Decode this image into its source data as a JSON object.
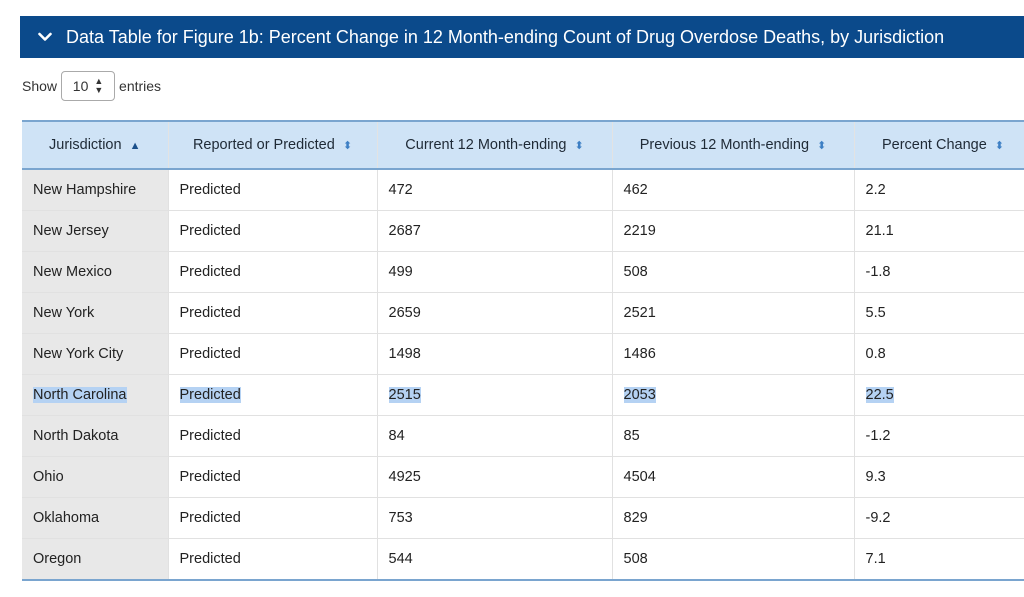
{
  "accordion": {
    "title": "Data Table for Figure 1b: Percent Change in 12 Month-ending Count of Drug Overdose Deaths, by Jurisdiction"
  },
  "length_control": {
    "show_label": "Show",
    "selected": "10",
    "entries_label": "entries"
  },
  "table": {
    "columns": [
      {
        "label": "Jurisdiction",
        "sort": "asc"
      },
      {
        "label": "Reported or Predicted",
        "sort": "both"
      },
      {
        "label": "Current 12 Month-ending",
        "sort": "both"
      },
      {
        "label": "Previous 12 Month-ending",
        "sort": "both"
      },
      {
        "label": "Percent Change",
        "sort": "both"
      }
    ],
    "rows": [
      {
        "jurisdiction": "New Hampshire",
        "reported": "Predicted",
        "current": "472",
        "previous": "462",
        "pct": "2.2",
        "selected": false
      },
      {
        "jurisdiction": "New Jersey",
        "reported": "Predicted",
        "current": "2687",
        "previous": "2219",
        "pct": "21.1",
        "selected": false
      },
      {
        "jurisdiction": "New Mexico",
        "reported": "Predicted",
        "current": "499",
        "previous": "508",
        "pct": "-1.8",
        "selected": false
      },
      {
        "jurisdiction": "New York",
        "reported": "Predicted",
        "current": "2659",
        "previous": "2521",
        "pct": "5.5",
        "selected": false
      },
      {
        "jurisdiction": "New York City",
        "reported": "Predicted",
        "current": "1498",
        "previous": "1486",
        "pct": "0.8",
        "selected": false
      },
      {
        "jurisdiction": "North Carolina",
        "reported": "Predicted",
        "current": "2515",
        "previous": "2053",
        "pct": "22.5",
        "selected": true
      },
      {
        "jurisdiction": "North Dakota",
        "reported": "Predicted",
        "current": "84",
        "previous": "85",
        "pct": "-1.2",
        "selected": false
      },
      {
        "jurisdiction": "Ohio",
        "reported": "Predicted",
        "current": "4925",
        "previous": "4504",
        "pct": "9.3",
        "selected": false
      },
      {
        "jurisdiction": "Oklahoma",
        "reported": "Predicted",
        "current": "753",
        "previous": "829",
        "pct": "-9.2",
        "selected": false
      },
      {
        "jurisdiction": "Oregon",
        "reported": "Predicted",
        "current": "544",
        "previous": "508",
        "pct": "7.1",
        "selected": false
      }
    ]
  },
  "colors": {
    "header_bar": "#0b4a8b",
    "table_header": "#cfe3f6",
    "selection": "#b5d2f3",
    "sort_icon": "#3d7fc4"
  }
}
